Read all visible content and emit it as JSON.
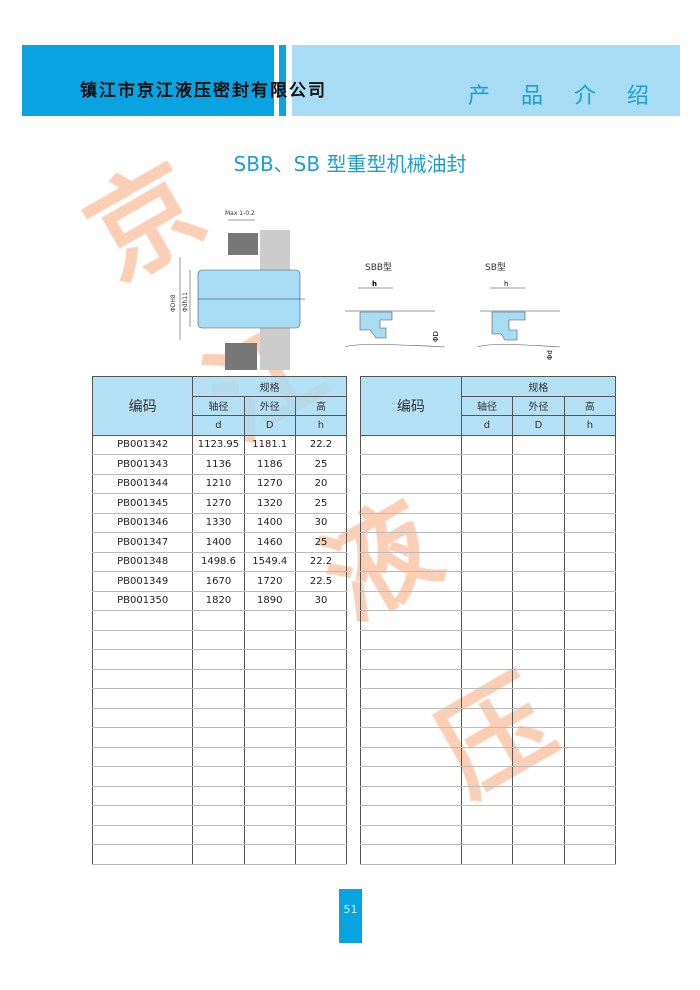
{
  "header": {
    "company": "镇江市京江液压密封有限公司",
    "section": "产 品 介 绍",
    "color_dark": "#0aa3e2",
    "color_light": "#a8dcf4"
  },
  "title": "SBB、SB 型重型机械油封",
  "watermark": [
    "京",
    "江",
    "液",
    "压"
  ],
  "diagram": {
    "max_label": "Max 1-0.2",
    "dim_a": "ΦDH8",
    "dim_b": "Φdh11",
    "sbb_label": "SBB型",
    "sb_label": "SB型",
    "h": "h",
    "phiD": "ΦD",
    "phid": "Φd"
  },
  "table": {
    "code_header": "编码",
    "spec_header": "规格",
    "columns": [
      {
        "name": "轴径",
        "symbol": "d"
      },
      {
        "name": "外径",
        "symbol": "D"
      },
      {
        "name": "高",
        "symbol": "h"
      }
    ],
    "left_rows": [
      [
        "PB001342",
        "1123.95",
        "1181.1",
        "22.2"
      ],
      [
        "PB001343",
        "1136",
        "1186",
        "25"
      ],
      [
        "PB001344",
        "1210",
        "1270",
        "20"
      ],
      [
        "PB001345",
        "1270",
        "1320",
        "25"
      ],
      [
        "PB001346",
        "1330",
        "1400",
        "30"
      ],
      [
        "PB001347",
        "1400",
        "1460",
        "25"
      ],
      [
        "PB001348",
        "1498.6",
        "1549.4",
        "22.2"
      ],
      [
        "PB001349",
        "1670",
        "1720",
        "22.5"
      ],
      [
        "PB001350",
        "1820",
        "1890",
        "30"
      ]
    ],
    "right_rows": []
  },
  "page_number": "51"
}
